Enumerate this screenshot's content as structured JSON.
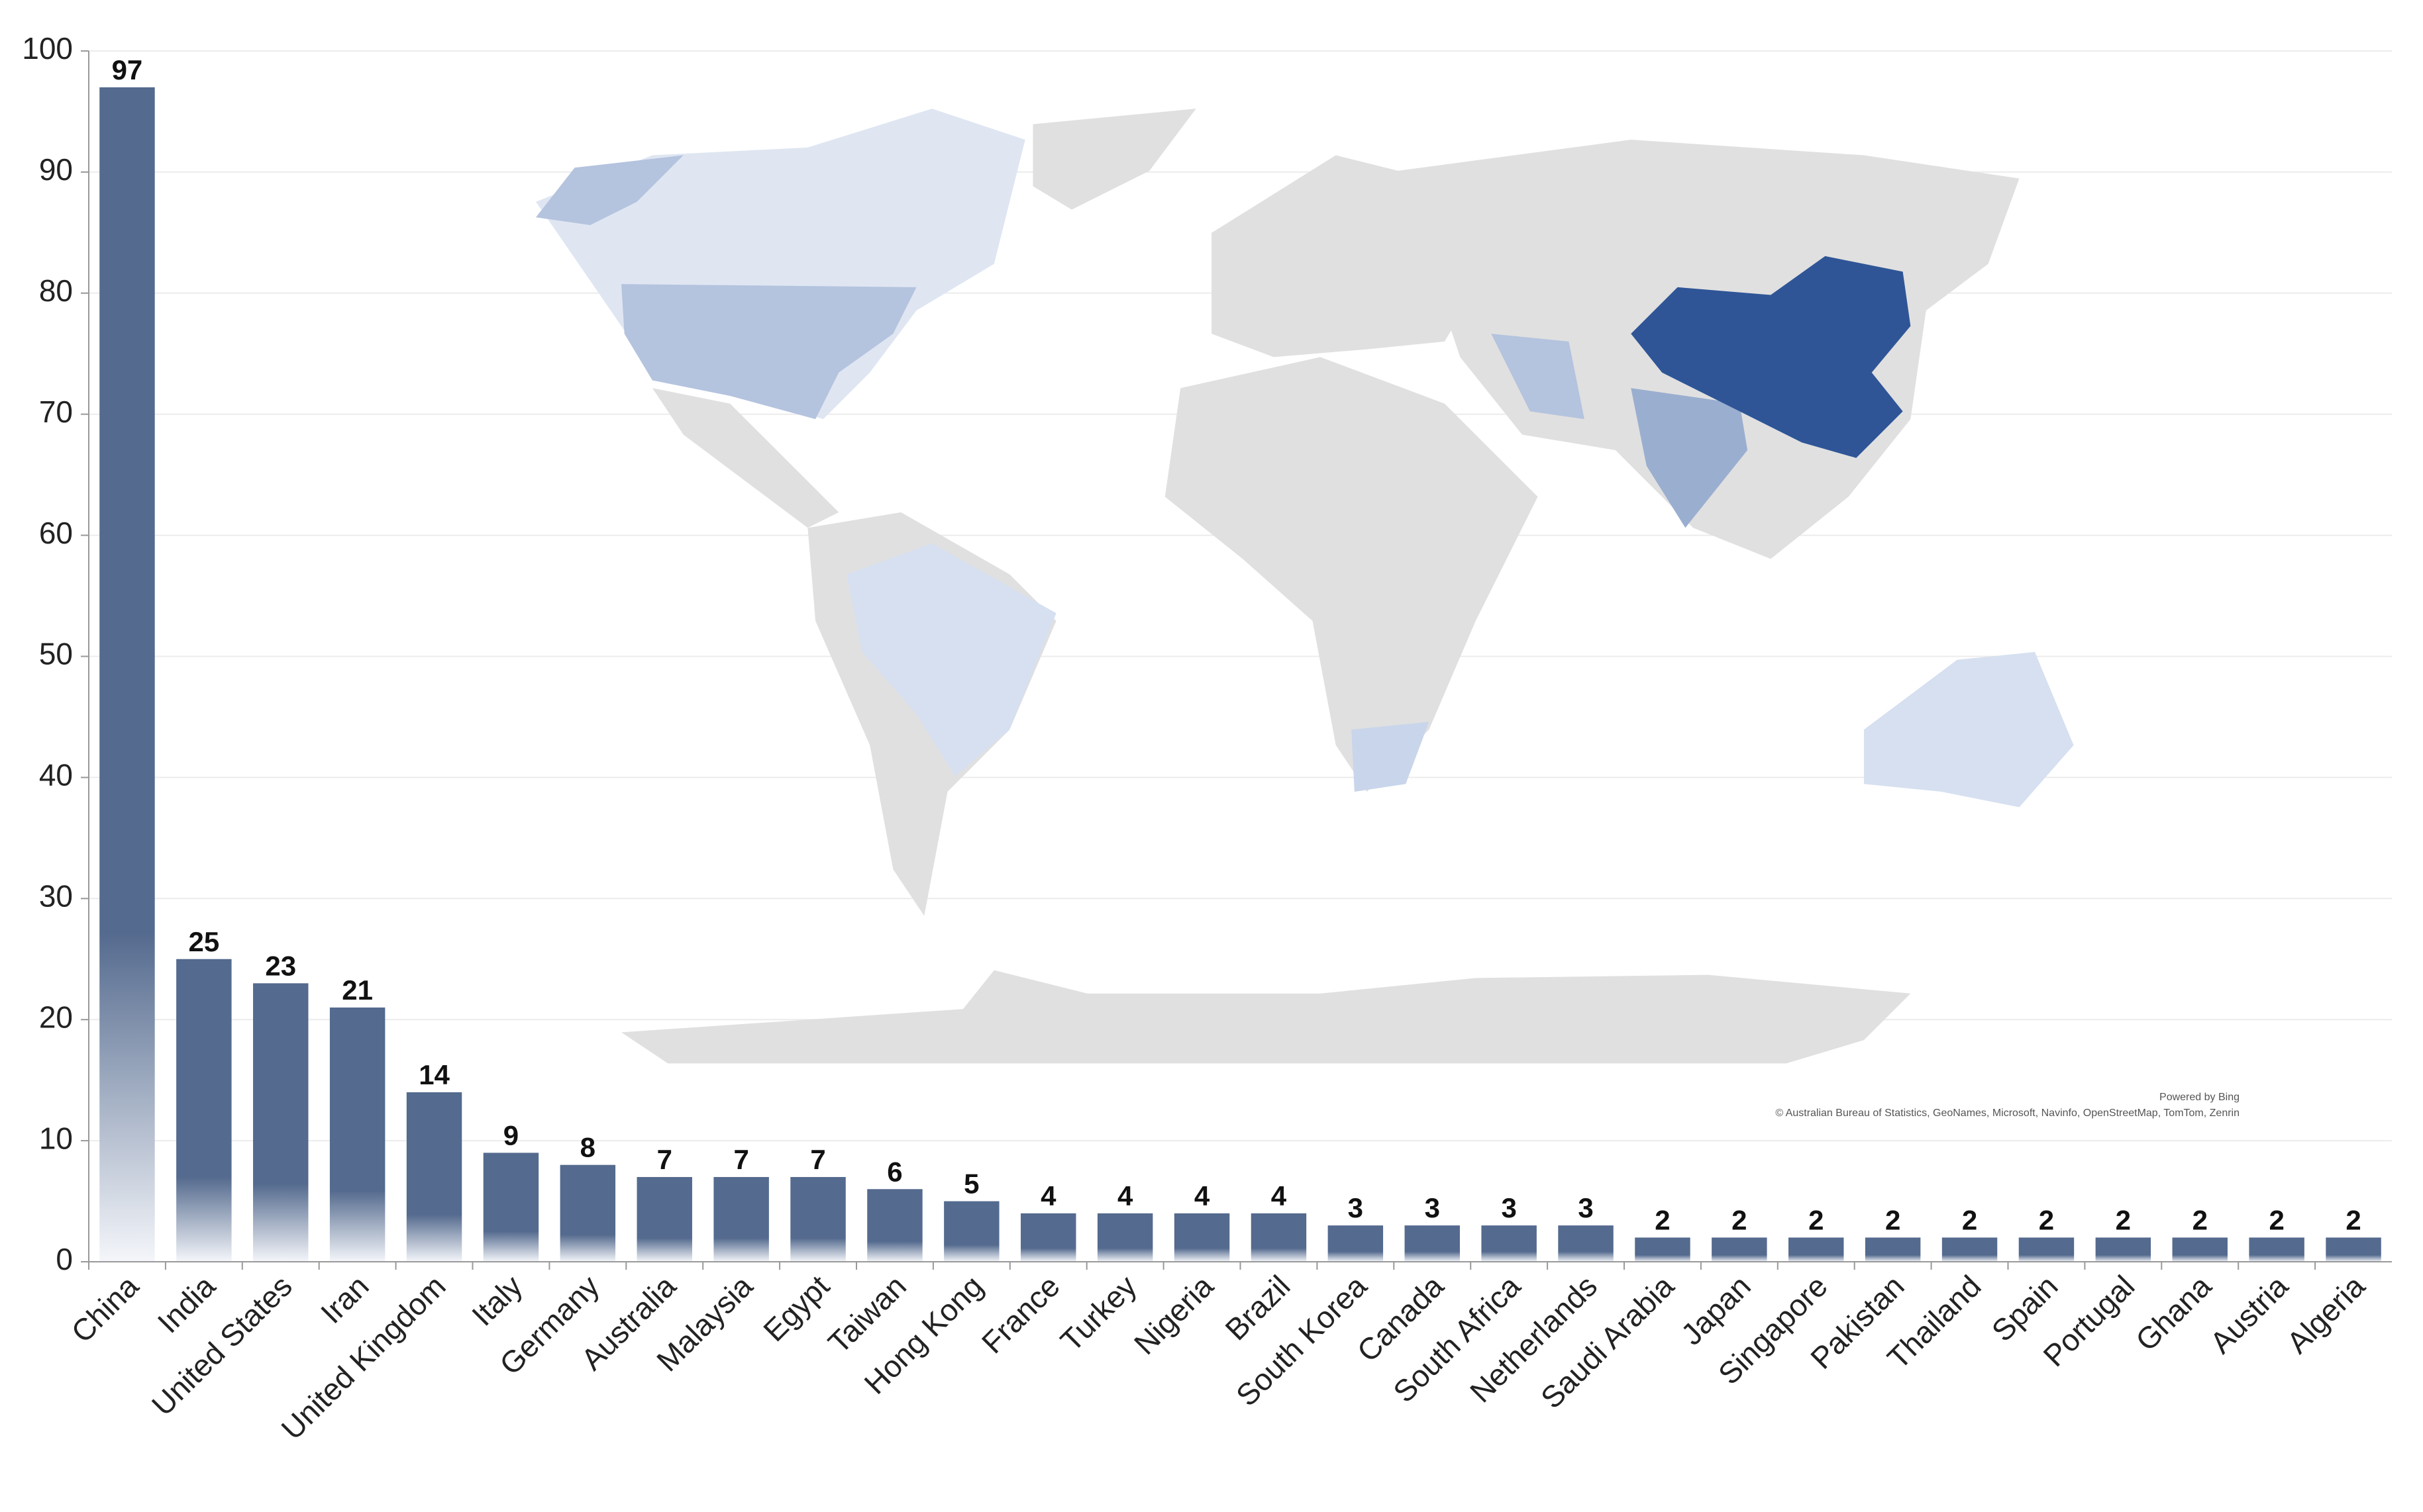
{
  "chart_data": {
    "type": "bar",
    "categories": [
      "China",
      "India",
      "United States",
      "Iran",
      "United Kingdom",
      "Italy",
      "Germany",
      "Australia",
      "Malaysia",
      "Egypt",
      "Taiwan",
      "Hong Kong",
      "France",
      "Turkey",
      "Nigeria",
      "Brazil",
      "South Korea",
      "Canada",
      "South Africa",
      "Netherlands",
      "Saudi Arabia",
      "Japan",
      "Singapore",
      "Pakistan",
      "Thailand",
      "Spain",
      "Portugal",
      "Ghana",
      "Austria",
      "Algeria"
    ],
    "values": [
      97,
      25,
      23,
      21,
      14,
      9,
      8,
      7,
      7,
      7,
      6,
      5,
      4,
      4,
      4,
      4,
      3,
      3,
      3,
      3,
      2,
      2,
      2,
      2,
      2,
      2,
      2,
      2,
      2,
      2
    ],
    "color": "#546a8e",
    "ylim": [
      0,
      100
    ],
    "yticks": [
      0,
      10,
      20,
      30,
      40,
      50,
      60,
      70,
      80,
      90,
      100
    ],
    "grid": true,
    "annotations": [
      "Powered by Bing",
      "© Australian Bureau of Statistics, GeoNames, Microsoft, Navinfo, OpenStreetMap, TomTom, Zenrin"
    ]
  }
}
